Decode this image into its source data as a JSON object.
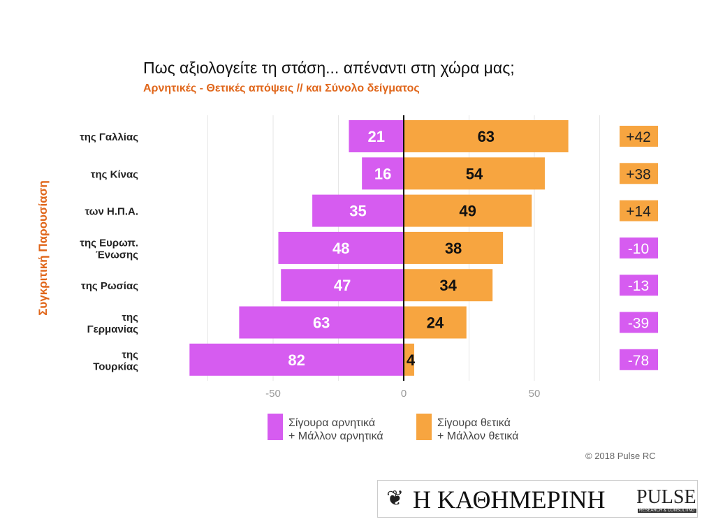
{
  "chart_data": {
    "type": "bar",
    "title": "Πως αξιολογείτε τη στάση... απέναντι στη χώρα μας;",
    "subtitle": "Αρνητικές - Θετικές απόψεις // και Σύνολο δείγματος",
    "ylabel": "Συγκριτική  Παρουσίαση",
    "categories": [
      [
        "της Γαλλίας"
      ],
      [
        "της Κίνας"
      ],
      [
        "των Η.Π.Α."
      ],
      [
        "της Ευρωπ.",
        "Ένωσης"
      ],
      [
        "της Ρωσίας"
      ],
      [
        "της",
        "Γερμανίας"
      ],
      [
        "της",
        "Τουρκίας"
      ]
    ],
    "series": [
      {
        "name": "Σίγουρα αρνητικά + Μάλλον αρνητικά",
        "legend": [
          "Σίγουρα αρνητικά",
          "+ Μάλλον αρνητικά"
        ],
        "color": "#d65cf0",
        "values": [
          21,
          16,
          35,
          48,
          47,
          63,
          82
        ]
      },
      {
        "name": "Σίγουρα θετικά + Μάλλον θετικά",
        "legend": [
          "Σίγουρα θετικά",
          "+ Μάλλον θετικά"
        ],
        "color": "#f7a540",
        "values": [
          63,
          54,
          49,
          38,
          34,
          24,
          4
        ]
      }
    ],
    "net": [
      "+42",
      "+38",
      "+14",
      "-10",
      "-13",
      "-39",
      "-78"
    ],
    "xticks": [
      {
        "v": -50,
        "label": "-50"
      },
      {
        "v": 0,
        "label": "0"
      },
      {
        "v": 50,
        "label": "50"
      }
    ],
    "xlim": [
      -85,
      75
    ]
  },
  "copyright": "© 2018 Pulse RC",
  "logo": {
    "kathimerini": "Η ΚΑΘΗΜΕΡΙΝΗ",
    "pulse": "PULSE",
    "pulse_sub": "RESEARCH & CONSULTING"
  }
}
